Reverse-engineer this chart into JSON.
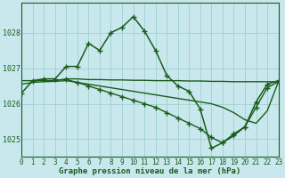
{
  "background_color": "#c8e8ee",
  "grid_color": "#9fcfcf",
  "line_color": "#1a5c1a",
  "title": "Graphe pression niveau de la mer (hPa)",
  "xlim": [
    0,
    23
  ],
  "ylim": [
    1024.5,
    1028.85
  ],
  "yticks": [
    1025,
    1026,
    1027,
    1028
  ],
  "xticks": [
    0,
    1,
    2,
    3,
    4,
    5,
    6,
    7,
    8,
    9,
    10,
    11,
    12,
    13,
    14,
    15,
    16,
    17,
    18,
    19,
    20,
    21,
    22,
    23
  ],
  "series": [
    {
      "x": [
        0,
        1,
        2,
        3,
        4,
        5,
        6,
        7,
        8,
        9,
        10,
        11,
        12,
        13,
        14,
        15,
        16,
        17,
        18,
        19,
        20,
        21,
        22,
        23
      ],
      "y": [
        1026.3,
        1026.65,
        1026.7,
        1026.7,
        1027.05,
        1027.05,
        1027.7,
        1027.5,
        1028.0,
        1028.15,
        1028.45,
        1028.05,
        1027.5,
        1026.8,
        1026.5,
        1026.35,
        1025.85,
        1024.75,
        1024.9,
        1025.15,
        1025.35,
        1026.05,
        1026.55,
        1026.65
      ],
      "marker": "+",
      "markersize": 4.5,
      "linewidth": 1.1
    },
    {
      "x": [
        0,
        1,
        2,
        3,
        4,
        5,
        6,
        7,
        8,
        9,
        10,
        11,
        12,
        13,
        14,
        15,
        16,
        17,
        18,
        19,
        20,
        21,
        22,
        23
      ],
      "y": [
        1026.65,
        1026.65,
        1026.65,
        1026.65,
        1026.7,
        1026.7,
        1026.68,
        1026.68,
        1026.67,
        1026.67,
        1026.66,
        1026.66,
        1026.65,
        1026.65,
        1026.65,
        1026.64,
        1026.64,
        1026.63,
        1026.63,
        1026.62,
        1026.62,
        1026.62,
        1026.62,
        1026.62
      ],
      "marker": null,
      "markersize": 0,
      "linewidth": 1.0
    },
    {
      "x": [
        0,
        1,
        2,
        3,
        4,
        5,
        6,
        7,
        8,
        9,
        10,
        11,
        12,
        13,
        14,
        15,
        16,
        17,
        18,
        19,
        20,
        21,
        22,
        23
      ],
      "y": [
        1026.55,
        1026.6,
        1026.62,
        1026.63,
        1026.65,
        1026.6,
        1026.55,
        1026.5,
        1026.45,
        1026.4,
        1026.35,
        1026.3,
        1026.25,
        1026.2,
        1026.15,
        1026.1,
        1026.05,
        1026.0,
        1025.9,
        1025.75,
        1025.55,
        1025.45,
        1025.8,
        1026.62
      ],
      "marker": null,
      "markersize": 0,
      "linewidth": 1.0
    },
    {
      "x": [
        4,
        5,
        6,
        7,
        8,
        9,
        10,
        11,
        12,
        13,
        14,
        15,
        16,
        17,
        18,
        19,
        20,
        21,
        22,
        23
      ],
      "y": [
        1026.68,
        1026.6,
        1026.5,
        1026.4,
        1026.3,
        1026.2,
        1026.1,
        1026.0,
        1025.9,
        1025.75,
        1025.6,
        1025.45,
        1025.3,
        1025.05,
        1024.9,
        1025.1,
        1025.35,
        1025.9,
        1026.45,
        1026.62
      ],
      "marker": "+",
      "markersize": 4.0,
      "linewidth": 1.0
    }
  ]
}
